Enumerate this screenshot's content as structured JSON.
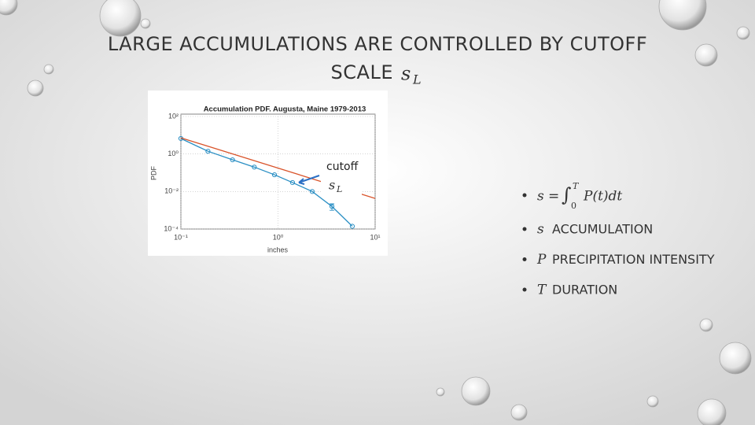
{
  "slide": {
    "title": [
      "LARGE ACCUMULATIONS ARE CONTROLLED BY CUTOFF",
      "SCALE"
    ],
    "title_symbol": "s",
    "title_subscript": "L",
    "formula": {
      "lhs": "s",
      "op": "=",
      "integral": "∫",
      "lower": "0",
      "upper": "T",
      "body": "P(t)dt"
    },
    "bullets": [
      {
        "symbol": "s",
        "text": "ACCUMULATION"
      },
      {
        "symbol": "P",
        "text": "PRECIPITATION INTENSITY"
      },
      {
        "symbol": "T",
        "text": "DURATION"
      }
    ]
  },
  "chart_data": {
    "type": "line",
    "title": "Accumulation PDF. Augusta, Maine 1979-2013",
    "xlabel": "inches",
    "ylabel": "PDF",
    "xscale": "log",
    "yscale": "log",
    "xlim": [
      0.1,
      10
    ],
    "ylim": [
      0.0001,
      100
    ],
    "xticks": [
      {
        "value": 0.1,
        "label": "10⁻¹"
      },
      {
        "value": 1,
        "label": "10⁰"
      },
      {
        "value": 10,
        "label": "10¹"
      }
    ],
    "yticks": [
      {
        "value": 0.0001,
        "label": "10⁻⁴"
      },
      {
        "value": 0.01,
        "label": "10⁻²"
      },
      {
        "value": 1,
        "label": "10⁰"
      },
      {
        "value": 100,
        "label": "10²"
      }
    ],
    "grid": true,
    "series": [
      {
        "color": "#2a8fc4",
        "marker": "circle",
        "x": [
          0.1,
          0.19,
          0.34,
          0.57,
          0.92,
          1.41,
          2.25,
          3.59,
          5.82
        ],
        "values": [
          6.7,
          1.4,
          0.49,
          0.2,
          0.078,
          0.03,
          0.01,
          0.0016,
          0.00014
        ],
        "errors": [
          null,
          null,
          null,
          null,
          null,
          null,
          null,
          0.0006,
          0.00024
        ]
      },
      {
        "color": "#d9542b",
        "x": [
          0.1,
          10
        ],
        "values": [
          7.3,
          0.0043
        ]
      }
    ],
    "annotation": {
      "text": "cutoff",
      "symbol": "s",
      "subscript": "L"
    }
  }
}
